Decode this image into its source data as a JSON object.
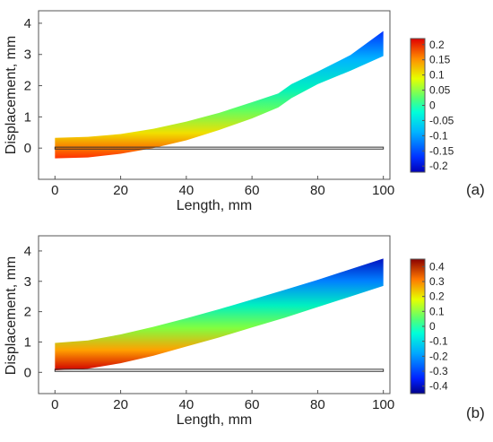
{
  "chart_data": [
    {
      "type": "contour",
      "panel_label": "(a)",
      "xlabel": "Length, mm",
      "ylabel": "Displacement, mm",
      "xlim": [
        -5,
        102
      ],
      "ylim": [
        -1,
        4.4
      ],
      "xticks": [
        0,
        20,
        40,
        60,
        80,
        100
      ],
      "yticks": [
        0,
        1,
        2,
        3,
        4
      ],
      "colorbar": {
        "range": [
          -0.22,
          0.22
        ],
        "ticks": [
          "0.2",
          "0.15",
          "0.1",
          "0.05",
          "0",
          "-0.05",
          "-0.1",
          "-0.15",
          "-0.2"
        ],
        "colormap": "jet"
      },
      "band": {
        "x": [
          0,
          10,
          20,
          30,
          40,
          50,
          60,
          68,
          72,
          80,
          90,
          100
        ],
        "top": [
          0.33,
          0.36,
          0.45,
          0.62,
          0.85,
          1.13,
          1.47,
          1.75,
          2.05,
          2.45,
          2.98,
          3.75
        ],
        "bottom": [
          -0.33,
          -0.3,
          -0.18,
          0.0,
          0.25,
          0.58,
          0.95,
          1.3,
          1.6,
          2.05,
          2.48,
          2.95
        ]
      },
      "reference_plate": {
        "x": [
          0,
          100
        ],
        "y": [
          -0.03,
          0.03
        ]
      }
    },
    {
      "type": "contour",
      "panel_label": "(b)",
      "xlabel": "Length, mm",
      "ylabel": "Displacement, mm",
      "xlim": [
        -5,
        102
      ],
      "ylim": [
        -0.7,
        4.5
      ],
      "xticks": [
        0,
        20,
        40,
        60,
        80,
        100
      ],
      "yticks": [
        0,
        1,
        2,
        3,
        4
      ],
      "colorbar": {
        "range": [
          -0.45,
          0.45
        ],
        "ticks": [
          "0.4",
          "0.3",
          "0.2",
          "0.1",
          "0",
          "-0.1",
          "-0.2",
          "-0.3",
          "-0.4"
        ],
        "colormap": "jet"
      },
      "band": {
        "x": [
          0,
          10,
          20,
          30,
          40,
          50,
          60,
          70,
          80,
          90,
          100
        ],
        "top": [
          0.97,
          1.05,
          1.25,
          1.5,
          1.78,
          2.08,
          2.4,
          2.72,
          3.05,
          3.4,
          3.75
        ],
        "bottom": [
          0.07,
          0.12,
          0.3,
          0.55,
          0.85,
          1.15,
          1.48,
          1.8,
          2.15,
          2.5,
          2.85
        ]
      },
      "reference_plate": {
        "x": [
          0,
          100
        ],
        "y": [
          0.03,
          0.1
        ]
      }
    }
  ]
}
